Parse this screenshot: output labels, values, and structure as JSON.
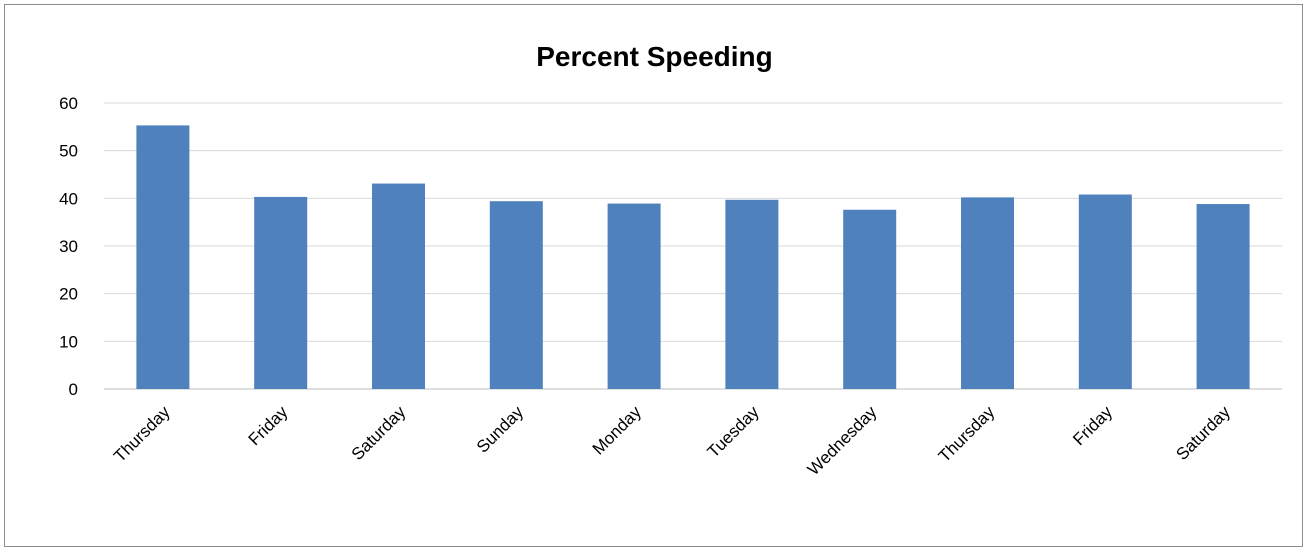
{
  "chart_data": {
    "type": "bar",
    "title": "Percent Speeding",
    "xlabel": "",
    "ylabel": "",
    "categories": [
      "Thursday",
      "Friday",
      "Saturday",
      "Sunday",
      "Monday",
      "Tuesday",
      "Wednesday",
      "Thursday",
      "Friday",
      "Saturday"
    ],
    "values": [
      55.3,
      40.3,
      43.1,
      39.4,
      38.9,
      39.7,
      37.6,
      40.2,
      40.8,
      38.8
    ],
    "ylim": [
      0,
      60
    ],
    "yticks": [
      0,
      10,
      20,
      30,
      40,
      50,
      60
    ],
    "grid": true,
    "legend": "none",
    "bar_color": "#4f81bd",
    "grid_color": "#d9d9d9"
  }
}
